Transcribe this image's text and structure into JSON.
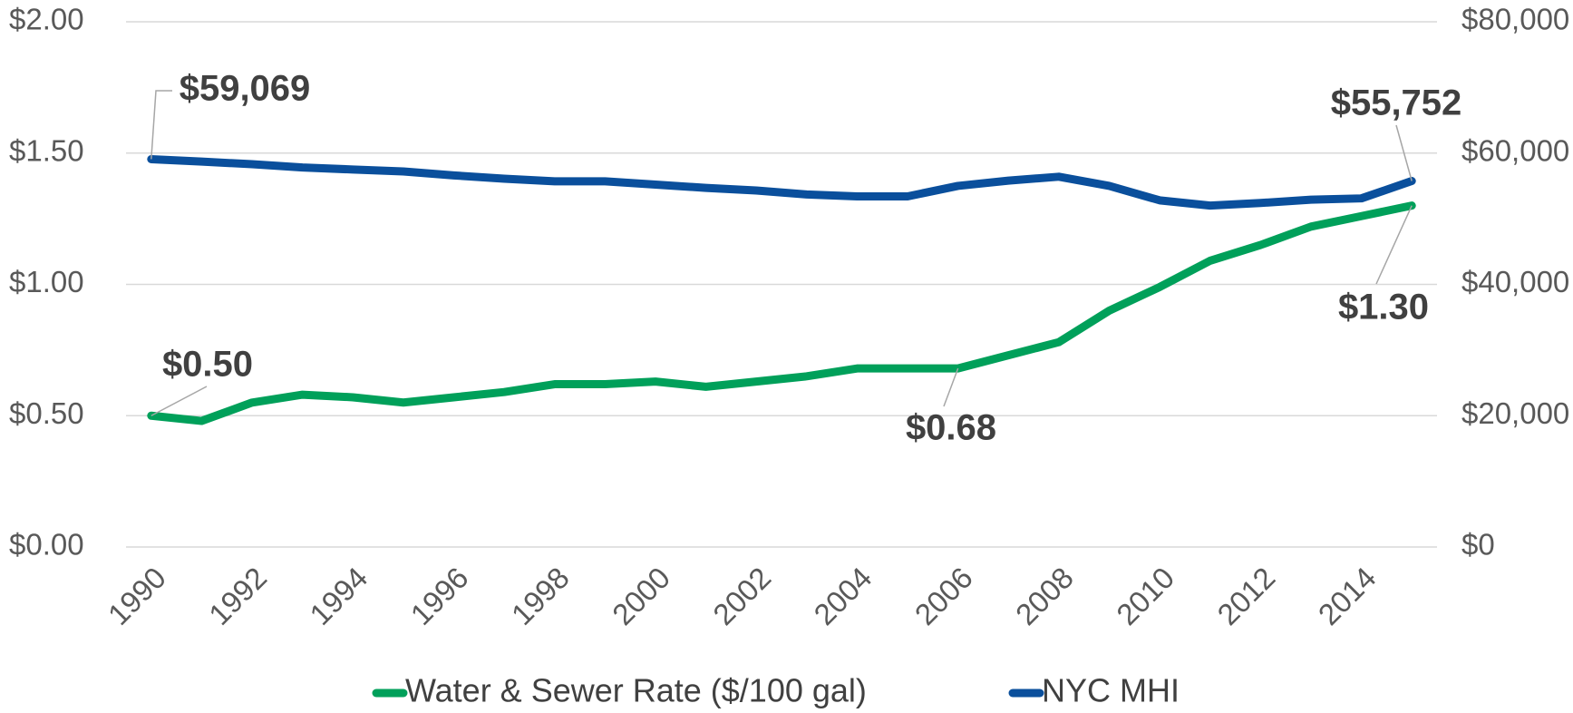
{
  "chart_data": {
    "type": "line",
    "x": [
      1990,
      1991,
      1992,
      1993,
      1994,
      1995,
      1996,
      1997,
      1998,
      1999,
      2000,
      2001,
      2002,
      2003,
      2004,
      2005,
      2006,
      2007,
      2008,
      2009,
      2010,
      2011,
      2012,
      2013,
      2014,
      2015
    ],
    "xlim": [
      1989.5,
      2015.5
    ],
    "xticks": [
      1990,
      1992,
      1994,
      1996,
      1998,
      2000,
      2002,
      2004,
      2006,
      2008,
      2010,
      2012,
      2014
    ],
    "ylim": [
      0,
      2
    ],
    "yticks": [
      {
        "value": 0,
        "label": "$0.00"
      },
      {
        "value": 0.5,
        "label": "$0.50"
      },
      {
        "value": 1,
        "label": "$1.00"
      },
      {
        "value": 1.5,
        "label": "$1.50"
      },
      {
        "value": 2,
        "label": "$2.00"
      }
    ],
    "y2lim": [
      0,
      80000
    ],
    "y2ticks": [
      {
        "value": 0,
        "label": "$0"
      },
      {
        "value": 20000,
        "label": "$20,000"
      },
      {
        "value": 40000,
        "label": "$40,000"
      },
      {
        "value": 60000,
        "label": "$60,000"
      },
      {
        "value": 80000,
        "label": "$80,000"
      }
    ],
    "grid": true,
    "legend": "bottom",
    "series": [
      {
        "name": "Water & Sewer Rate ($/100 gal)",
        "color": "#00a05a",
        "values": [
          0.5,
          0.48,
          0.55,
          0.58,
          0.57,
          0.55,
          0.57,
          0.59,
          0.62,
          0.62,
          0.63,
          0.61,
          0.63,
          0.65,
          0.68,
          0.68,
          0.68,
          0.73,
          0.78,
          0.9,
          0.99,
          1.09,
          1.15,
          1.22,
          1.26,
          1.3
        ],
        "value_labels": [
          "$0.50",
          null,
          null,
          null,
          null,
          null,
          null,
          null,
          null,
          null,
          null,
          null,
          null,
          null,
          null,
          null,
          "$0.68",
          null,
          null,
          null,
          null,
          null,
          null,
          null,
          null,
          "$1.30"
        ]
      },
      {
        "name": "NYC MHI",
        "color": "#0a4f9c",
        "axis": "y2",
        "values": [
          59069,
          58700,
          58300,
          57800,
          57500,
          57200,
          56600,
          56100,
          55700,
          55700,
          55200,
          54700,
          54300,
          53700,
          53400,
          53400,
          55000,
          55800,
          56400,
          55000,
          52800,
          52000,
          52400,
          52900,
          53100,
          55752
        ],
        "value_labels": [
          "$59,069",
          null,
          null,
          null,
          null,
          null,
          null,
          null,
          null,
          null,
          null,
          null,
          null,
          null,
          null,
          null,
          null,
          null,
          null,
          null,
          null,
          null,
          null,
          null,
          null,
          "$55,752"
        ]
      }
    ]
  }
}
